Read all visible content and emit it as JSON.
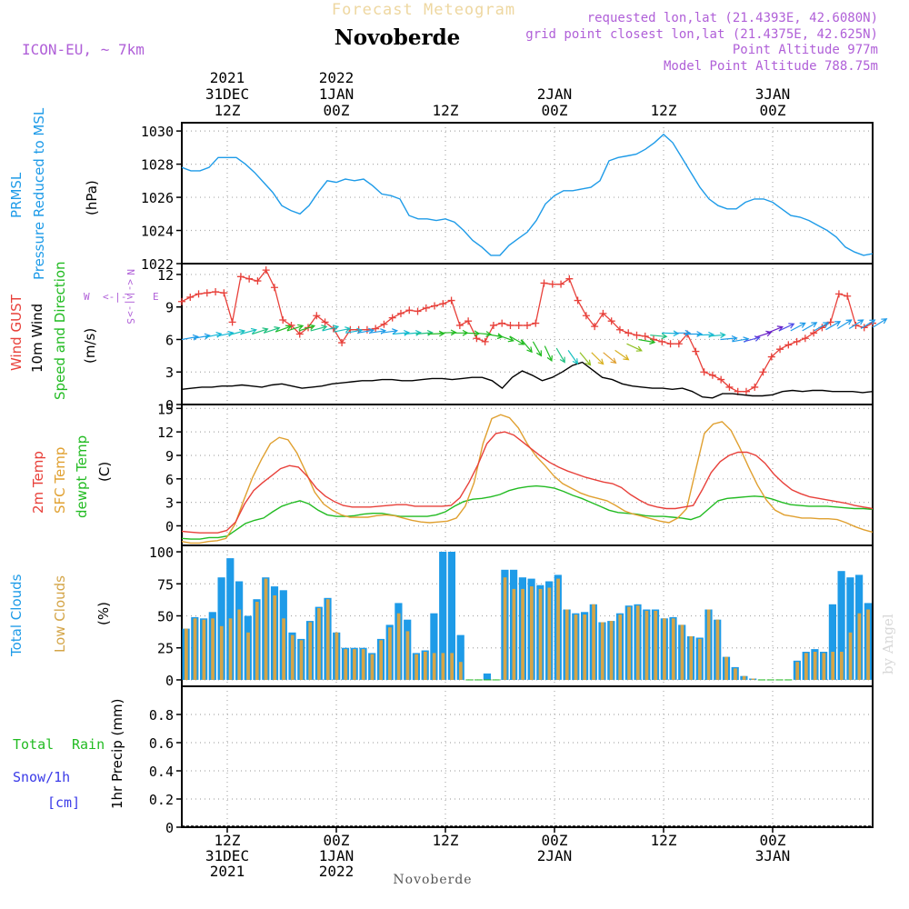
{
  "header": {
    "title": "Forecast Meteogram",
    "location": "Novoberde",
    "model": "ICON-EU, ~ 7km",
    "requested": "requested lon,lat (21.4393E, 42.6080N)",
    "gridpoint": "grid point closest lon,lat (21.4375E, 42.625N)",
    "point_alt": "Point Altitude 977m",
    "model_alt": "Model Point Altitude 788.75m",
    "footer_location": "Novoberde",
    "watermark": "by Angel"
  },
  "colors": {
    "pressure": "#1e9be8",
    "gust": "#e8403a",
    "wind": "#000000",
    "dir": "#22bb22",
    "temp": "#e8403a",
    "sfc": "#e0a030",
    "dewpt": "#22bb22",
    "total_clouds": "#1e9be8",
    "low_clouds": "#d4a548",
    "purple": "#b060d8",
    "rain": "#22bb22",
    "snow": "#3a3ae8"
  },
  "top_axis": [
    {
      "x": 5,
      "lines": [
        "2021",
        "31DEC",
        "12Z"
      ]
    },
    {
      "x": 17,
      "lines": [
        "2022",
        "1JAN",
        "00Z"
      ]
    },
    {
      "x": 29,
      "lines": [
        "",
        "",
        "12Z"
      ]
    },
    {
      "x": 41,
      "lines": [
        "",
        "2JAN",
        "00Z"
      ]
    },
    {
      "x": 53,
      "lines": [
        "",
        "",
        "12Z"
      ]
    },
    {
      "x": 65,
      "lines": [
        "",
        "3JAN",
        "00Z"
      ]
    }
  ],
  "bottom_axis": [
    {
      "x": 5,
      "lines": [
        "12Z",
        "31DEC",
        "2021"
      ]
    },
    {
      "x": 17,
      "lines": [
        "00Z",
        "1JAN",
        "2022"
      ]
    },
    {
      "x": 29,
      "lines": [
        "12Z",
        "",
        ""
      ]
    },
    {
      "x": 41,
      "lines": [
        "00Z",
        "2JAN",
        ""
      ]
    },
    {
      "x": 53,
      "lines": [
        "12Z",
        "",
        ""
      ]
    },
    {
      "x": 65,
      "lines": [
        "00Z",
        "3JAN",
        ""
      ]
    }
  ],
  "panel_labels": {
    "pressure": {
      "a": "PRMSL",
      "b": "Pressure Reduced to MSL",
      "unit": "(hPa)"
    },
    "wind": {
      "a": "Wind GUST",
      "b": "10m Wind",
      "c": "Speed and Direction",
      "unit": "(m/s)",
      "compass_n": "N",
      "compass_s": "S",
      "compass_w": "W",
      "compass_e": "E"
    },
    "temp": {
      "a": "2m Temp",
      "b": "SFC Temp",
      "c": "dewpt Temp",
      "unit": "(C)"
    },
    "clouds": {
      "a": "Total Clouds",
      "b": "Low Clouds",
      "unit": "(%)"
    },
    "precip": {
      "a": "Total",
      "b": "Rain",
      "c": "Snow/1h",
      "d": "[cm]",
      "unit": "1hr Precip (mm)"
    }
  },
  "chart_data": [
    {
      "type": "line",
      "title": "PRMSL Pressure Reduced to MSL",
      "ylabel": "hPa",
      "ylim": [
        1022,
        1030.5
      ],
      "yticks": [
        1022,
        1024,
        1026,
        1028,
        1030
      ],
      "x_hours_from_start": [
        0,
        1,
        2,
        3,
        4,
        5,
        6,
        7,
        8,
        9,
        10,
        11,
        12,
        13,
        14,
        15,
        16,
        17,
        18,
        19,
        20,
        21,
        22,
        23,
        24,
        25,
        26,
        27,
        28,
        29,
        30,
        31,
        32,
        33,
        34,
        35,
        36,
        37,
        38,
        39,
        40,
        41,
        42,
        43,
        44,
        45,
        46,
        47,
        48,
        49,
        50,
        51,
        52,
        53,
        54,
        55,
        56,
        57,
        58,
        59,
        60,
        61,
        62,
        63,
        64,
        65,
        66,
        67,
        68,
        69,
        70,
        71,
        72,
        73,
        74,
        75,
        76
      ],
      "values": [
        1027.8,
        1027.6,
        1027.6,
        1027.8,
        1028.4,
        1028.4,
        1028.4,
        1028.0,
        1027.5,
        1026.9,
        1026.3,
        1025.5,
        1025.2,
        1025.0,
        1025.5,
        1026.3,
        1027.0,
        1026.9,
        1027.1,
        1027.0,
        1027.1,
        1026.7,
        1026.2,
        1026.1,
        1025.9,
        1024.9,
        1024.7,
        1024.7,
        1024.6,
        1024.7,
        1024.5,
        1024.0,
        1023.4,
        1023.0,
        1022.5,
        1022.5,
        1023.1,
        1023.5,
        1023.9,
        1024.6,
        1025.6,
        1026.1,
        1026.4,
        1026.4,
        1026.5,
        1026.6,
        1027.0,
        1028.2,
        1028.4,
        1028.5,
        1028.6,
        1028.9,
        1029.3,
        1029.8,
        1029.3,
        1028.4,
        1027.5,
        1026.6,
        1025.9,
        1025.5,
        1025.3,
        1025.3,
        1025.7,
        1025.9,
        1025.9,
        1025.7,
        1025.3,
        1024.9,
        1024.8,
        1024.6,
        1024.3,
        1024.0,
        1023.6,
        1023.0,
        1022.7,
        1022.5,
        1022.6
      ]
    },
    {
      "type": "line",
      "title": "Wind GUST / 10m Wind Speed and Direction",
      "ylabel": "m/s",
      "ylim": [
        0,
        13
      ],
      "yticks": [
        0,
        3,
        6,
        9,
        12
      ],
      "series": [
        {
          "name": "Wind GUST",
          "values": [
            9.5,
            9.9,
            10.2,
            10.3,
            10.4,
            10.3,
            7.6,
            11.8,
            11.6,
            11.4,
            12.4,
            10.8,
            7.8,
            7.3,
            6.5,
            7.1,
            8.2,
            7.6,
            7.0,
            5.7,
            6.9,
            6.9,
            6.9,
            7.0,
            7.4,
            8.0,
            8.4,
            8.7,
            8.6,
            8.9,
            9.1,
            9.3,
            9.6,
            7.3,
            7.7,
            6.1,
            5.8,
            7.3,
            7.5,
            7.3,
            7.3,
            7.3,
            7.5,
            11.2,
            11.1,
            11.1,
            11.6,
            9.6,
            8.2,
            7.2,
            8.4,
            7.7,
            6.9,
            6.6,
            6.4,
            6.3,
            6.0,
            5.8,
            5.6,
            5.6,
            6.5,
            4.9,
            3.0,
            2.7,
            2.3,
            1.6,
            1.2,
            1.2,
            1.6,
            3.0,
            4.4,
            5.1,
            5.5,
            5.8,
            6.1,
            6.6,
            7.1,
            7.6,
            10.2,
            10.0,
            7.3,
            7.1,
            7.5
          ]
        },
        {
          "name": "10m Wind",
          "values": [
            1.4,
            1.5,
            1.6,
            1.6,
            1.7,
            1.7,
            1.8,
            1.7,
            1.6,
            1.8,
            1.9,
            1.7,
            1.5,
            1.6,
            1.7,
            1.9,
            2.0,
            2.1,
            2.2,
            2.2,
            2.3,
            2.3,
            2.2,
            2.2,
            2.3,
            2.4,
            2.4,
            2.3,
            2.4,
            2.5,
            2.5,
            2.2,
            1.5,
            2.5,
            3.1,
            2.7,
            2.2,
            2.5,
            3.0,
            3.6,
            3.9,
            3.2,
            2.5,
            2.3,
            1.9,
            1.7,
            1.6,
            1.5,
            1.5,
            1.4,
            1.5,
            1.2,
            0.7,
            0.6,
            1.0,
            1.0,
            0.9,
            0.8,
            0.8,
            0.9,
            1.2,
            1.3,
            1.2,
            1.3,
            1.3,
            1.2,
            1.2,
            1.2,
            1.1,
            1.2
          ]
        }
      ],
      "wind_direction": {
        "heights_ms": [
          6.0,
          6.1,
          6.2,
          6.3,
          6.4,
          6.5,
          6.5,
          6.6,
          6.7,
          6.8,
          6.8,
          6.8,
          6.8,
          6.7,
          6.6,
          6.6,
          6.6,
          6.6,
          6.5,
          6.5,
          6.5,
          6.5,
          6.6,
          6.6,
          6.6,
          6.6,
          6.5,
          6.4,
          6.3,
          6.0,
          5.8,
          5.4,
          5.2,
          5.0,
          4.8,
          4.8,
          4.8,
          5.0,
          5.6,
          6.0,
          6.4,
          6.6,
          6.6,
          6.5,
          6.4,
          6.3,
          6.0,
          5.8,
          5.8,
          6.2,
          6.6,
          6.8,
          6.8,
          6.8,
          6.8,
          6.9,
          7.0,
          7.0,
          7.0,
          7.1
        ],
        "toward_deg": [
          80,
          80,
          78,
          78,
          75,
          75,
          72,
          72,
          70,
          72,
          72,
          75,
          75,
          78,
          80,
          80,
          82,
          82,
          85,
          85,
          85,
          88,
          88,
          90,
          92,
          95,
          100,
          110,
          120,
          140,
          150,
          155,
          150,
          145,
          140,
          135,
          130,
          125,
          115,
          100,
          95,
          92,
          90,
          90,
          88,
          85,
          85,
          80,
          75,
          72,
          68,
          65,
          62,
          60,
          60,
          60,
          58,
          58,
          58,
          58
        ],
        "colors": [
          "#1e9be8",
          "#1e9be8",
          "#17b7d8",
          "#17b7d8",
          "#17c0c0",
          "#17c0c0",
          "#20c080",
          "#20c080",
          "#22bb22",
          "#22bb22",
          "#22bb22",
          "#20c080",
          "#17c0c0",
          "#17c0c0",
          "#17b7d8",
          "#1e9be8",
          "#1e9be8",
          "#1e9be8",
          "#17b7d8",
          "#17c0c0",
          "#20c080",
          "#22bb22",
          "#22bb22",
          "#22bb22",
          "#22bb22",
          "#22bb22",
          "#22bb22",
          "#22bb22",
          "#22bb22",
          "#22bb22",
          "#22bb22",
          "#22bb22",
          "#20c080",
          "#17c0c0",
          "#8fc020",
          "#d8b020",
          "#e0a030",
          "#d8b020",
          "#8fc020",
          "#22bb22",
          "#20c080",
          "#17b7d8",
          "#1e9be8",
          "#1e9be8",
          "#17b7d8",
          "#17c0c0",
          "#1e9be8",
          "#1e9be8",
          "#5050e8",
          "#6a20c8",
          "#6a20c8",
          "#5050e8",
          "#1e9be8",
          "#1e9be8",
          "#1e9be8",
          "#1e9be8",
          "#1e9be8",
          "#1e9be8",
          "#1e9be8",
          "#1e9be8"
        ]
      }
    },
    {
      "type": "line",
      "title": "2m Temp / SFC Temp / dewpt Temp",
      "ylabel": "C",
      "ylim": [
        -2.5,
        15.5
      ],
      "yticks": [
        0,
        3,
        6,
        9,
        12,
        15
      ],
      "series": [
        {
          "name": "2m Temp",
          "values": [
            -0.7,
            -0.8,
            -0.9,
            -0.9,
            -0.9,
            -0.6,
            0.5,
            2.8,
            4.5,
            5.5,
            6.4,
            7.3,
            7.7,
            7.5,
            6.3,
            4.8,
            3.8,
            3.1,
            2.6,
            2.4,
            2.4,
            2.4,
            2.5,
            2.6,
            2.7,
            2.7,
            2.5,
            2.5,
            2.5,
            2.5,
            2.6,
            3.6,
            5.5,
            7.8,
            10.5,
            11.8,
            12.0,
            11.6,
            10.7,
            9.8,
            8.9,
            8.1,
            7.5,
            7.0,
            6.6,
            6.2,
            5.9,
            5.6,
            5.4,
            4.9,
            4.0,
            3.3,
            2.7,
            2.4,
            2.2,
            2.2,
            2.4,
            2.6,
            4.6,
            6.8,
            8.2,
            9.0,
            9.4,
            9.4,
            9.0,
            8.0,
            6.6,
            5.5,
            4.6,
            4.1,
            3.7,
            3.5,
            3.3,
            3.1,
            2.9,
            2.6,
            2.4,
            2.2
          ]
        },
        {
          "name": "SFC Temp",
          "values": [
            -2.0,
            -2.2,
            -2.2,
            -2.0,
            -1.9,
            -1.6,
            0.2,
            3.3,
            6.2,
            8.5,
            10.5,
            11.3,
            11.0,
            9.3,
            6.9,
            4.3,
            2.8,
            2.0,
            1.4,
            1.1,
            1.1,
            1.1,
            1.3,
            1.4,
            1.3,
            1.0,
            0.7,
            0.5,
            0.4,
            0.5,
            0.6,
            1.0,
            2.5,
            5.5,
            10.5,
            13.7,
            14.2,
            13.8,
            12.5,
            10.5,
            8.9,
            7.7,
            6.4,
            5.4,
            4.8,
            4.2,
            3.8,
            3.5,
            3.2,
            2.6,
            1.9,
            1.5,
            1.2,
            0.9,
            0.6,
            0.4,
            1.0,
            2.2,
            7.0,
            11.8,
            13.0,
            13.3,
            12.2,
            10.0,
            7.5,
            5.2,
            3.3,
            2.0,
            1.4,
            1.2,
            1.0,
            1.0,
            0.9,
            0.9,
            0.8,
            0.4,
            -0.1,
            -0.5,
            -0.8
          ]
        },
        {
          "name": "dewpt Temp",
          "values": [
            -1.6,
            -1.7,
            -1.7,
            -1.5,
            -1.5,
            -1.3,
            -0.5,
            0.3,
            0.7,
            1.0,
            1.8,
            2.5,
            2.9,
            3.2,
            2.8,
            2.0,
            1.4,
            1.2,
            1.2,
            1.3,
            1.5,
            1.6,
            1.6,
            1.4,
            1.2,
            1.2,
            1.2,
            1.2,
            1.4,
            1.8,
            2.5,
            3.1,
            3.4,
            3.5,
            3.7,
            4.0,
            4.5,
            4.8,
            5.0,
            5.1,
            5.0,
            4.8,
            4.4,
            3.9,
            3.5,
            3.0,
            2.5,
            2.0,
            1.7,
            1.6,
            1.5,
            1.3,
            1.2,
            1.2,
            1.1,
            1.0,
            0.8,
            1.2,
            2.2,
            3.2,
            3.5,
            3.6,
            3.7,
            3.8,
            3.7,
            3.4,
            3.0,
            2.7,
            2.6,
            2.5,
            2.5,
            2.5,
            2.4,
            2.3,
            2.2,
            2.2,
            2.1
          ]
        }
      ]
    },
    {
      "type": "bar",
      "title": "Total Clouds / Low Clouds",
      "ylabel": "%",
      "ylim": [
        -5,
        105
      ],
      "yticks": [
        0,
        25,
        50,
        75,
        100
      ],
      "series": [
        {
          "name": "Total Clouds",
          "values": [
            40,
            49,
            48,
            53,
            80,
            95,
            77,
            50,
            63,
            80,
            73,
            70,
            37,
            32,
            46,
            57,
            64,
            37,
            25,
            25,
            25,
            21,
            32,
            43,
            60,
            47,
            21,
            23,
            52,
            100,
            100,
            35,
            0,
            0,
            5,
            0,
            86,
            86,
            80,
            79,
            74,
            77,
            82,
            55,
            52,
            53,
            59,
            45,
            46,
            52,
            58,
            59,
            55,
            55,
            48,
            49,
            43,
            34,
            33,
            55,
            47,
            18,
            10,
            3,
            1,
            0,
            0,
            0,
            0,
            15,
            22,
            24,
            22,
            59,
            85,
            80,
            82,
            60
          ]
        },
        {
          "name": "Low Clouds",
          "values": [
            40,
            48,
            47,
            48,
            42,
            48,
            55,
            37,
            61,
            79,
            66,
            48,
            35,
            31,
            45,
            56,
            63,
            37,
            24,
            24,
            24,
            20,
            31,
            41,
            52,
            38,
            20,
            22,
            21,
            21,
            21,
            14,
            0,
            0,
            0,
            0,
            80,
            71,
            71,
            73,
            71,
            72,
            79,
            55,
            51,
            51,
            59,
            45,
            46,
            51,
            57,
            58,
            54,
            54,
            48,
            48,
            43,
            34,
            32,
            55,
            47,
            18,
            9,
            3,
            1,
            0,
            0,
            0,
            0,
            14,
            21,
            22,
            21,
            22,
            22,
            37,
            52,
            55
          ]
        }
      ]
    },
    {
      "type": "line",
      "title": "1hr Precip",
      "ylabel": "1hr Precip (mm)",
      "ylim": [
        0,
        1
      ],
      "yticks": [
        0,
        0.2,
        0.4,
        0.6,
        0.8
      ],
      "series": [
        {
          "name": "Total",
          "values": [
            0
          ]
        },
        {
          "name": "Rain",
          "values": [
            0
          ]
        },
        {
          "name": "Snow/1h",
          "values": [
            0
          ]
        }
      ]
    }
  ]
}
